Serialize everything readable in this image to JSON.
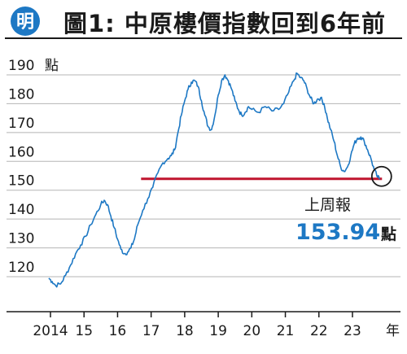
{
  "header": {
    "logo_char": "明",
    "title": "圖1: 中原樓價指數回到6年前"
  },
  "chart_data": {
    "type": "line",
    "title": "圖1: 中原樓價指數回到6年前",
    "ylabel_unit": "點",
    "xlabel_unit": "年",
    "ylim": [
      110,
      195
    ],
    "xlim": [
      2013.5,
      2024.4
    ],
    "y_ticks": [
      190,
      180,
      170,
      160,
      150,
      140,
      130,
      120
    ],
    "x_ticks": [
      {
        "label": "2014",
        "value": 2014
      },
      {
        "label": "15",
        "value": 2015
      },
      {
        "label": "16",
        "value": 2016
      },
      {
        "label": "17",
        "value": 2017
      },
      {
        "label": "18",
        "value": 2018
      },
      {
        "label": "19",
        "value": 2019
      },
      {
        "label": "20",
        "value": 2020
      },
      {
        "label": "21",
        "value": 2021
      },
      {
        "label": "22",
        "value": 2022
      },
      {
        "label": "23",
        "value": 2023
      }
    ],
    "grid": "horizontal",
    "series": [
      {
        "name": "",
        "color": "#1d78c4",
        "points": [
          [
            2013.95,
            119.5
          ],
          [
            2014.05,
            118.3
          ],
          [
            2014.15,
            117.0
          ],
          [
            2014.3,
            117.5
          ],
          [
            2014.45,
            120.5
          ],
          [
            2014.6,
            124.0
          ],
          [
            2014.75,
            128.0
          ],
          [
            2014.9,
            131.0
          ],
          [
            2015.05,
            134.0
          ],
          [
            2015.2,
            138.0
          ],
          [
            2015.35,
            141.5
          ],
          [
            2015.5,
            145.0
          ],
          [
            2015.6,
            146.5
          ],
          [
            2015.7,
            145.0
          ],
          [
            2015.8,
            141.0
          ],
          [
            2015.9,
            137.0
          ],
          [
            2016.0,
            133.0
          ],
          [
            2016.1,
            129.5
          ],
          [
            2016.2,
            128.0
          ],
          [
            2016.3,
            128.5
          ],
          [
            2016.4,
            130.0
          ],
          [
            2016.5,
            133.0
          ],
          [
            2016.6,
            138.0
          ],
          [
            2016.75,
            143.0
          ],
          [
            2016.9,
            147.0
          ],
          [
            2017.05,
            151.0
          ],
          [
            2017.2,
            156.0
          ],
          [
            2017.35,
            159.5
          ],
          [
            2017.5,
            161.0
          ],
          [
            2017.6,
            162.0
          ],
          [
            2017.7,
            164.0
          ],
          [
            2017.8,
            170.0
          ],
          [
            2017.9,
            176.0
          ],
          [
            2018.0,
            181.0
          ],
          [
            2018.1,
            185.0
          ],
          [
            2018.2,
            187.5
          ],
          [
            2018.3,
            188.0
          ],
          [
            2018.4,
            186.0
          ],
          [
            2018.5,
            181.0
          ],
          [
            2018.6,
            176.0
          ],
          [
            2018.7,
            172.0
          ],
          [
            2018.8,
            171.0
          ],
          [
            2018.9,
            176.0
          ],
          [
            2019.0,
            183.0
          ],
          [
            2019.1,
            188.0
          ],
          [
            2019.2,
            190.0
          ],
          [
            2019.3,
            188.0
          ],
          [
            2019.4,
            185.0
          ],
          [
            2019.5,
            181.0
          ],
          [
            2019.6,
            178.0
          ],
          [
            2019.7,
            176.0
          ],
          [
            2019.8,
            177.0
          ],
          [
            2019.9,
            179.0
          ],
          [
            2020.0,
            178.0
          ],
          [
            2020.2,
            177.0
          ],
          [
            2020.4,
            179.0
          ],
          [
            2020.6,
            177.5
          ],
          [
            2020.8,
            178.0
          ],
          [
            2020.95,
            180.0
          ],
          [
            2021.1,
            184.0
          ],
          [
            2021.25,
            188.0
          ],
          [
            2021.35,
            190.5
          ],
          [
            2021.45,
            189.0
          ],
          [
            2021.55,
            188.0
          ],
          [
            2021.65,
            185.0
          ],
          [
            2021.75,
            182.0
          ],
          [
            2021.85,
            180.0
          ],
          [
            2021.95,
            181.5
          ],
          [
            2022.05,
            182.0
          ],
          [
            2022.15,
            180.0
          ],
          [
            2022.25,
            175.0
          ],
          [
            2022.35,
            171.0
          ],
          [
            2022.45,
            167.0
          ],
          [
            2022.55,
            162.0
          ],
          [
            2022.65,
            158.0
          ],
          [
            2022.75,
            156.5
          ],
          [
            2022.85,
            158.0
          ],
          [
            2022.95,
            162.0
          ],
          [
            2023.05,
            166.0
          ],
          [
            2023.15,
            168.0
          ],
          [
            2023.25,
            168.5
          ],
          [
            2023.35,
            167.0
          ],
          [
            2023.45,
            164.0
          ],
          [
            2023.55,
            161.0
          ],
          [
            2023.65,
            157.0
          ],
          [
            2023.75,
            154.5
          ],
          [
            2023.82,
            153.94
          ]
        ]
      }
    ],
    "reference_line": {
      "y": 153.94,
      "x_start": 2016.7,
      "x_end": 2023.88,
      "color": "#c0152f"
    },
    "annotation": {
      "label": "上周報",
      "value": "153.94",
      "unit": "點",
      "x": 2023.82,
      "y": 153.94
    }
  }
}
